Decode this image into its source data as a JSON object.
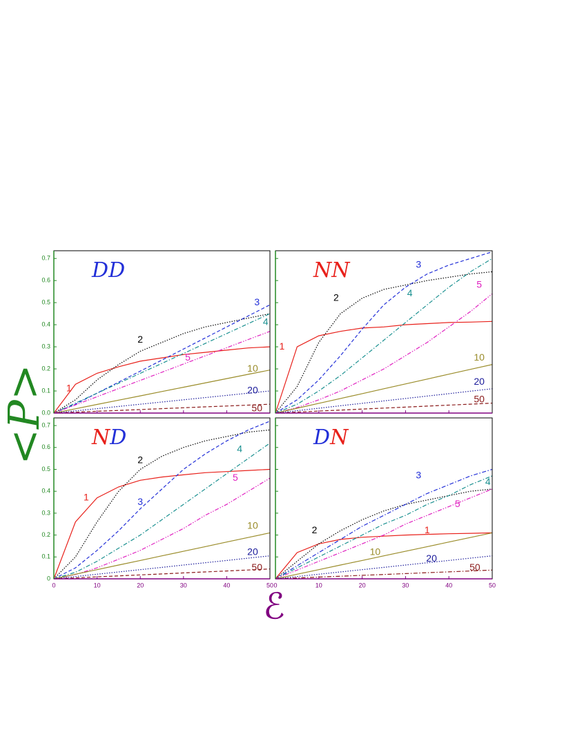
{
  "labels": {
    "y": "<P>",
    "x": "ℰ"
  },
  "chart_data": [
    {
      "type": "line",
      "title": "DD",
      "title_colors": [
        "#2330d8",
        "#2330d8"
      ],
      "x": [
        0,
        5,
        10,
        15,
        20,
        25,
        30,
        35,
        40,
        45,
        50
      ],
      "xlim": [
        0,
        50
      ],
      "xticks": [
        0,
        10,
        20,
        30,
        40,
        50
      ],
      "show_xtick_labels": false,
      "xtick_color": "#800080",
      "ylim": [
        0,
        0.735
      ],
      "yticks": [
        {
          "value": 0,
          "label": "0.0"
        },
        0.1,
        0.2,
        0.3,
        0.4,
        0.5,
        0.6,
        0.7
      ],
      "show_ytick_labels": true,
      "ytick_color": "#228822",
      "series": [
        {
          "name": "1",
          "color": "#e8201a",
          "style": "solid",
          "values": [
            0,
            0.13,
            0.18,
            0.21,
            0.235,
            0.25,
            0.265,
            0.275,
            0.285,
            0.295,
            0.3
          ]
        },
        {
          "name": "2",
          "color": "#000000",
          "style": "dotted",
          "values": [
            0,
            0.06,
            0.15,
            0.22,
            0.28,
            0.32,
            0.36,
            0.39,
            0.41,
            0.43,
            0.45
          ]
        },
        {
          "name": "3",
          "color": "#2330d8",
          "style": "dashed",
          "values": [
            0,
            0.04,
            0.09,
            0.14,
            0.19,
            0.24,
            0.29,
            0.34,
            0.39,
            0.44,
            0.49
          ]
        },
        {
          "name": "4",
          "color": "#1a9090",
          "style": "dashdot",
          "values": [
            0,
            0.045,
            0.09,
            0.135,
            0.18,
            0.225,
            0.27,
            0.315,
            0.36,
            0.405,
            0.45
          ]
        },
        {
          "name": "5",
          "color": "#e020c0",
          "style": "dashdotdot",
          "values": [
            0,
            0.037,
            0.074,
            0.111,
            0.148,
            0.185,
            0.222,
            0.259,
            0.296,
            0.333,
            0.37
          ]
        },
        {
          "name": "10",
          "color": "#9a8c2a",
          "style": "solid",
          "values": [
            0,
            0.0195,
            0.039,
            0.0585,
            0.078,
            0.0975,
            0.117,
            0.1365,
            0.156,
            0.1755,
            0.195
          ]
        },
        {
          "name": "20",
          "color": "#1a1a9a",
          "style": "dotted",
          "values": [
            0,
            0.01,
            0.02,
            0.03,
            0.04,
            0.05,
            0.06,
            0.07,
            0.08,
            0.09,
            0.1
          ]
        },
        {
          "name": "50",
          "color": "#8a1a1a",
          "style": "dashed",
          "values": [
            0,
            0.004,
            0.008,
            0.012,
            0.016,
            0.02,
            0.024,
            0.028,
            0.032,
            0.036,
            0.04
          ]
        }
      ]
    },
    {
      "type": "line",
      "title": "NN",
      "title_colors": [
        "#e8201a",
        "#e8201a"
      ],
      "x": [
        0,
        5,
        10,
        15,
        20,
        25,
        30,
        35,
        40,
        45,
        50
      ],
      "xlim": [
        0,
        50
      ],
      "xticks": [
        0,
        10,
        20,
        30,
        40,
        50
      ],
      "show_xtick_labels": false,
      "xtick_color": "#800080",
      "ylim": [
        0,
        0.735
      ],
      "yticks": [
        0,
        0.1,
        0.2,
        0.3,
        0.4,
        0.5,
        0.6,
        0.7
      ],
      "show_ytick_labels": false,
      "ytick_color": "#228822",
      "series": [
        {
          "name": "1",
          "color": "#e8201a",
          "style": "solid",
          "values": [
            0,
            0.3,
            0.35,
            0.37,
            0.385,
            0.39,
            0.4,
            0.405,
            0.41,
            0.412,
            0.415
          ]
        },
        {
          "name": "2",
          "color": "#000000",
          "style": "dotted",
          "values": [
            0,
            0.12,
            0.32,
            0.45,
            0.52,
            0.56,
            0.58,
            0.6,
            0.615,
            0.63,
            0.64
          ]
        },
        {
          "name": "3",
          "color": "#2330d8",
          "style": "dashed",
          "values": [
            0,
            0.06,
            0.15,
            0.26,
            0.38,
            0.49,
            0.57,
            0.63,
            0.67,
            0.7,
            0.73
          ]
        },
        {
          "name": "4",
          "color": "#1a9090",
          "style": "dashdot",
          "values": [
            0,
            0.04,
            0.1,
            0.17,
            0.25,
            0.33,
            0.41,
            0.49,
            0.57,
            0.64,
            0.7
          ]
        },
        {
          "name": "5",
          "color": "#e020c0",
          "style": "dashdotdot",
          "values": [
            0,
            0.025,
            0.06,
            0.1,
            0.15,
            0.2,
            0.26,
            0.32,
            0.39,
            0.46,
            0.54
          ]
        },
        {
          "name": "10",
          "color": "#9a8c2a",
          "style": "solid",
          "values": [
            0,
            0.022,
            0.044,
            0.066,
            0.088,
            0.11,
            0.132,
            0.154,
            0.176,
            0.198,
            0.22
          ]
        },
        {
          "name": "20",
          "color": "#1a1a9a",
          "style": "dotted",
          "values": [
            0,
            0.011,
            0.022,
            0.033,
            0.044,
            0.055,
            0.066,
            0.077,
            0.088,
            0.099,
            0.11
          ]
        },
        {
          "name": "50",
          "color": "#8a1a1a",
          "style": "dashed",
          "values": [
            0,
            0.0045,
            0.009,
            0.0135,
            0.018,
            0.0225,
            0.027,
            0.0315,
            0.036,
            0.0405,
            0.045
          ]
        }
      ]
    },
    {
      "type": "line",
      "title": "ND",
      "title_colors": [
        "#e8201a",
        "#2330d8"
      ],
      "x": [
        0,
        5,
        10,
        15,
        20,
        25,
        30,
        35,
        40,
        45,
        50
      ],
      "xlim": [
        0,
        50
      ],
      "xticks": [
        0,
        10,
        20,
        30,
        40,
        50
      ],
      "show_xtick_labels": true,
      "xtick_color": "#800080",
      "ylim": [
        0,
        0.735
      ],
      "yticks": [
        0,
        0.1,
        0.2,
        0.3,
        0.4,
        0.5,
        0.6,
        0.7
      ],
      "show_ytick_labels": true,
      "ytick_color": "#228822",
      "series": [
        {
          "name": "1",
          "color": "#e8201a",
          "style": "solid",
          "values": [
            0,
            0.26,
            0.37,
            0.42,
            0.45,
            0.465,
            0.475,
            0.485,
            0.49,
            0.495,
            0.5
          ]
        },
        {
          "name": "2",
          "color": "#000000",
          "style": "dotted",
          "values": [
            0,
            0.1,
            0.26,
            0.4,
            0.5,
            0.56,
            0.6,
            0.63,
            0.65,
            0.67,
            0.68
          ]
        },
        {
          "name": "3",
          "color": "#2330d8",
          "style": "dashed",
          "values": [
            0,
            0.05,
            0.13,
            0.22,
            0.32,
            0.41,
            0.5,
            0.57,
            0.63,
            0.68,
            0.72
          ]
        },
        {
          "name": "4",
          "color": "#1a9090",
          "style": "dashdot",
          "values": [
            0,
            0.03,
            0.08,
            0.14,
            0.2,
            0.27,
            0.34,
            0.41,
            0.48,
            0.55,
            0.62
          ]
        },
        {
          "name": "5",
          "color": "#e020c0",
          "style": "dashdotdot",
          "values": [
            0,
            0.02,
            0.05,
            0.09,
            0.13,
            0.18,
            0.23,
            0.29,
            0.34,
            0.4,
            0.46
          ]
        },
        {
          "name": "10",
          "color": "#9a8c2a",
          "style": "solid",
          "values": [
            0,
            0.021,
            0.042,
            0.063,
            0.084,
            0.105,
            0.126,
            0.147,
            0.168,
            0.189,
            0.21
          ]
        },
        {
          "name": "20",
          "color": "#1a1a9a",
          "style": "dotted",
          "values": [
            0,
            0.0105,
            0.021,
            0.0315,
            0.042,
            0.0525,
            0.063,
            0.0735,
            0.084,
            0.0945,
            0.105
          ]
        },
        {
          "name": "50",
          "color": "#8a1a1a",
          "style": "dashed",
          "values": [
            0,
            0.0045,
            0.009,
            0.0135,
            0.018,
            0.0225,
            0.027,
            0.0315,
            0.036,
            0.0405,
            0.045
          ]
        }
      ]
    },
    {
      "type": "line",
      "title": "DN",
      "title_colors": [
        "#2330d8",
        "#e8201a"
      ],
      "x": [
        0,
        5,
        10,
        15,
        20,
        25,
        30,
        35,
        40,
        45,
        50
      ],
      "xlim": [
        0,
        50
      ],
      "xticks": [
        0,
        10,
        20,
        30,
        40,
        50
      ],
      "show_xtick_labels": true,
      "xtick_color": "#800080",
      "ylim": [
        0,
        0.735
      ],
      "yticks": [
        0,
        0.1,
        0.2,
        0.3,
        0.4,
        0.5,
        0.6,
        0.7
      ],
      "show_ytick_labels": false,
      "ytick_color": "#228822",
      "series": [
        {
          "name": "1",
          "color": "#e8201a",
          "style": "solid",
          "values": [
            0,
            0.12,
            0.16,
            0.18,
            0.19,
            0.195,
            0.2,
            0.203,
            0.206,
            0.208,
            0.21
          ]
        },
        {
          "name": "2",
          "color": "#000000",
          "style": "dotted",
          "values": [
            0,
            0.08,
            0.16,
            0.22,
            0.27,
            0.31,
            0.34,
            0.36,
            0.38,
            0.4,
            0.41
          ]
        },
        {
          "name": "3",
          "color": "#2330d8",
          "style": "dashdot",
          "values": [
            0,
            0.06,
            0.12,
            0.18,
            0.24,
            0.29,
            0.34,
            0.39,
            0.43,
            0.47,
            0.5
          ]
        },
        {
          "name": "4",
          "color": "#1a9090",
          "style": "dashdot",
          "values": [
            0,
            0.05,
            0.1,
            0.15,
            0.2,
            0.25,
            0.29,
            0.34,
            0.38,
            0.43,
            0.47
          ]
        },
        {
          "name": "5",
          "color": "#e020c0",
          "style": "dashdotdot",
          "values": [
            0,
            0.04,
            0.08,
            0.12,
            0.16,
            0.2,
            0.25,
            0.29,
            0.33,
            0.37,
            0.41
          ]
        },
        {
          "name": "10",
          "color": "#9a8c2a",
          "style": "solid",
          "values": [
            0,
            0.021,
            0.042,
            0.063,
            0.084,
            0.105,
            0.126,
            0.147,
            0.168,
            0.189,
            0.21
          ]
        },
        {
          "name": "20",
          "color": "#1a1a9a",
          "style": "dotted",
          "values": [
            0,
            0.0105,
            0.021,
            0.0315,
            0.042,
            0.0525,
            0.063,
            0.0735,
            0.084,
            0.0945,
            0.105
          ]
        },
        {
          "name": "50",
          "color": "#8a1a1a",
          "style": "dashdot",
          "values": [
            0,
            0.004,
            0.008,
            0.012,
            0.016,
            0.02,
            0.024,
            0.028,
            0.032,
            0.036,
            0.04
          ]
        }
      ]
    }
  ]
}
